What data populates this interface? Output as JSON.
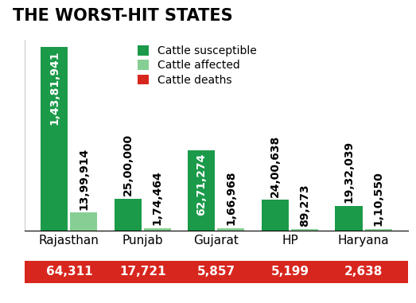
{
  "chart_data": {
    "type": "bar",
    "title": "THE WORST-HIT STATES",
    "categories": [
      "Rajasthan",
      "Punjab",
      "Gujarat",
      "HP",
      "Haryana"
    ],
    "series": [
      {
        "name": "Cattle susceptible",
        "color": "#1b9a4a",
        "type": "bar",
        "values": [
          14381941,
          2500000,
          6271274,
          2400638,
          1932039
        ],
        "value_labels": [
          "1,43,81,941",
          "25,00,000",
          "62,71,274",
          "24,00,638",
          "19,32,039"
        ]
      },
      {
        "name": "Cattle affected",
        "color": "#86cf94",
        "type": "bar",
        "values": [
          1399914,
          174464,
          166968,
          89273,
          110550
        ],
        "value_labels": [
          "13,99,914",
          "1,74,464",
          "1,66,968",
          "89,273",
          "1,10,550"
        ]
      },
      {
        "name": "Cattle deaths",
        "color": "#d7261e",
        "type": "table",
        "values": [
          64311,
          17721,
          5857,
          5199,
          2638
        ],
        "value_labels": [
          "64,311",
          "17,721",
          "5,857",
          "5,199",
          "2,638"
        ]
      }
    ],
    "ylim": [
      0,
      15000000
    ],
    "tick_labels": "x",
    "data_labels": true,
    "legend": "upper center"
  }
}
